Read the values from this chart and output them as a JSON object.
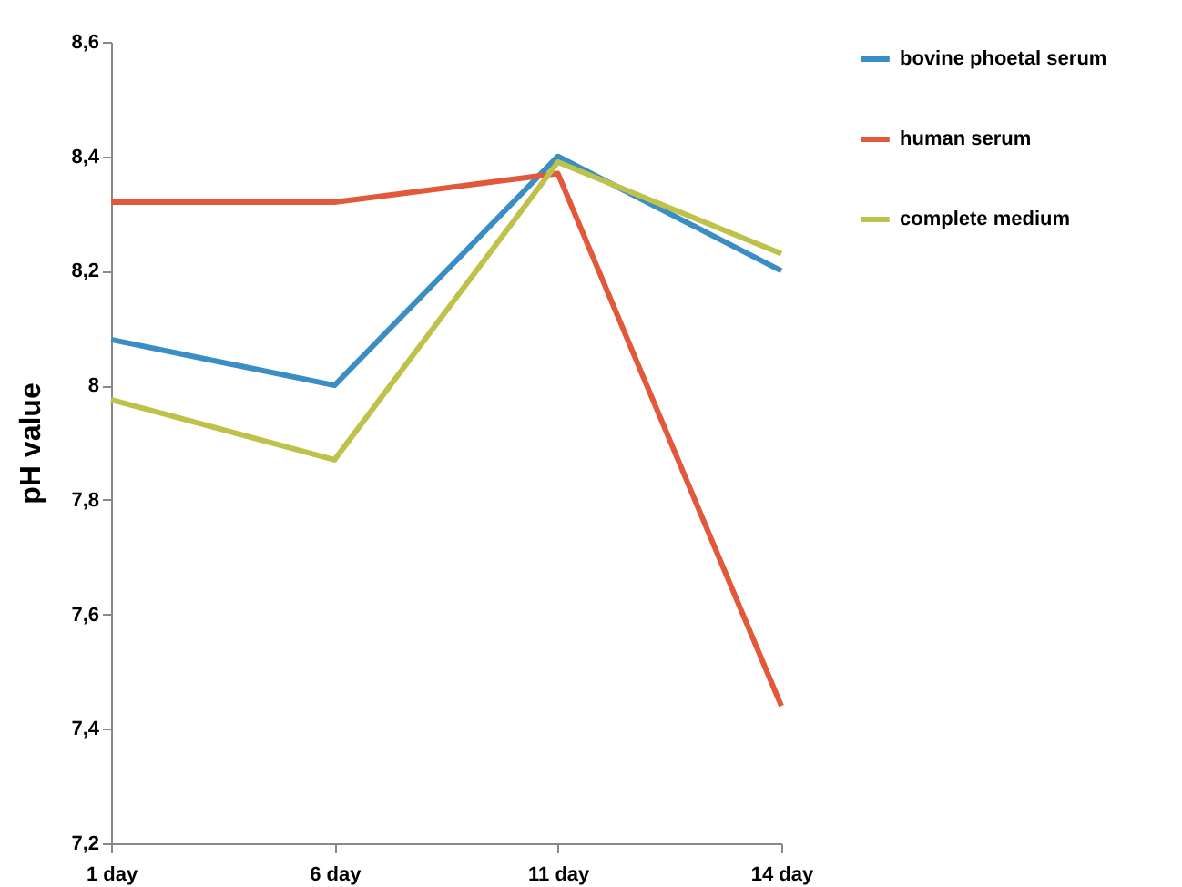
{
  "chart_data": {
    "type": "line",
    "ylabel": "pH value",
    "categories": [
      "1 day",
      "6 day",
      "11 day",
      "14 day"
    ],
    "series": [
      {
        "name": "bovine phoetal serum",
        "color": "#3a8ec4",
        "values": [
          8.08,
          8.0,
          8.4,
          8.2
        ]
      },
      {
        "name": "human serum",
        "color": "#e2583b",
        "values": [
          8.32,
          8.32,
          8.37,
          7.44
        ]
      },
      {
        "name": "complete medium",
        "color": "#bfc24a",
        "values": [
          7.975,
          7.87,
          8.39,
          8.23
        ]
      }
    ],
    "ylim": [
      7.2,
      8.6
    ],
    "yticks": [
      {
        "value": 7.2,
        "label": "7,2"
      },
      {
        "value": 7.4,
        "label": "7,4"
      },
      {
        "value": 7.6,
        "label": "7,6"
      },
      {
        "value": 7.8,
        "label": "7,8"
      },
      {
        "value": 8,
        "label": "8"
      },
      {
        "value": 8.2,
        "label": "8,2"
      },
      {
        "value": 8.4,
        "label": "8,4"
      },
      {
        "value": 8.6,
        "label": "8,6"
      }
    ],
    "grid": false,
    "legend": "right",
    "marker": "none",
    "line_style": "solid"
  }
}
